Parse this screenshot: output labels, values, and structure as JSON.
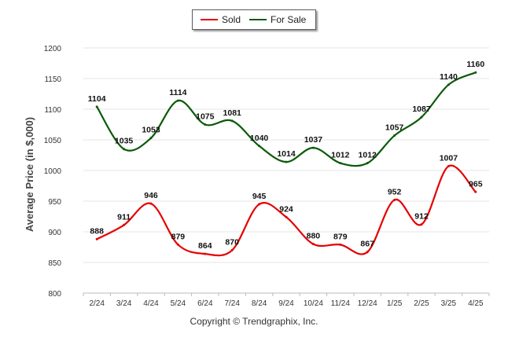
{
  "legend": {
    "sold_label": "Sold",
    "forsale_label": "For Sale"
  },
  "footer": {
    "copyright": "Copyright © Trendgraphix, Inc."
  },
  "colors": {
    "sold": "#e60000",
    "for_sale": "#0a5a0a",
    "grid": "#e4e4e4"
  },
  "chart_data": {
    "type": "line",
    "title": "",
    "xlabel": "",
    "ylabel": "Average Price (in $,000)",
    "ylim": [
      800,
      1200
    ],
    "yticks": [
      800,
      850,
      900,
      950,
      1000,
      1050,
      1100,
      1150,
      1200
    ],
    "categories": [
      "2/24",
      "3/24",
      "4/24",
      "5/24",
      "6/24",
      "7/24",
      "8/24",
      "9/24",
      "10/24",
      "11/24",
      "12/24",
      "1/25",
      "2/25",
      "3/25",
      "4/25"
    ],
    "series": [
      {
        "name": "Sold",
        "values": [
          888,
          911,
          946,
          879,
          864,
          870,
          945,
          924,
          880,
          879,
          867,
          952,
          912,
          1007,
          965
        ]
      },
      {
        "name": "For Sale",
        "values": [
          1104,
          1035,
          1053,
          1114,
          1075,
          1081,
          1040,
          1014,
          1037,
          1012,
          1012,
          1057,
          1087,
          1140,
          1160
        ]
      }
    ],
    "legend_position": "top-center",
    "grid": true
  }
}
